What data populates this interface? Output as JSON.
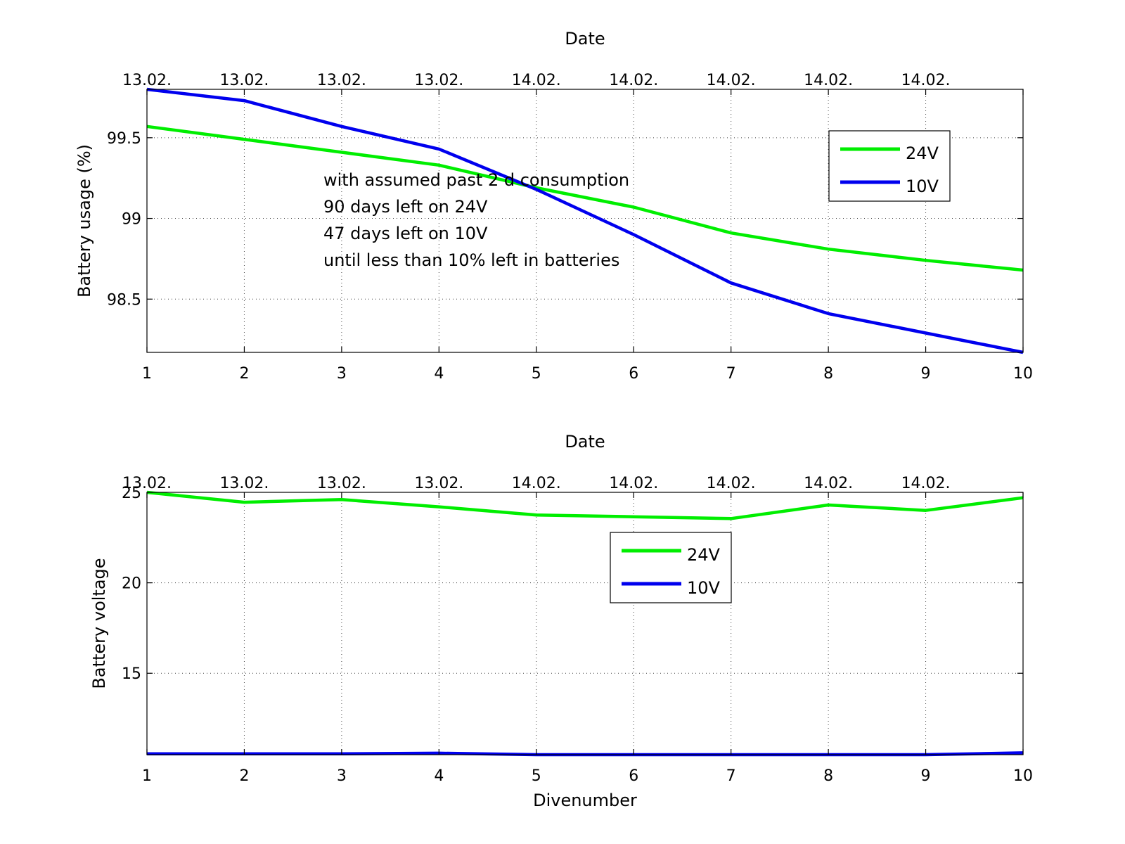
{
  "chart_data": [
    {
      "type": "line",
      "title": "",
      "top_xlabel": "Date",
      "xlabel": "",
      "ylabel": "Battery usage (%)",
      "x": [
        1,
        2,
        3,
        4,
        5,
        6,
        7,
        8,
        9,
        10
      ],
      "xlim": [
        1,
        10
      ],
      "ylim": [
        98.17,
        99.8
      ],
      "xticks": [
        "1",
        "2",
        "3",
        "4",
        "5",
        "6",
        "7",
        "8",
        "9",
        "10"
      ],
      "top_ticks": [
        "13.02.",
        "13.02.",
        "13.02.",
        "13.02.",
        "14.02.",
        "14.02.",
        "14.02.",
        "14.02.",
        "14.02."
      ],
      "yticks": [
        98.5,
        99,
        99.5
      ],
      "ytick_labels": [
        "98.5",
        "99",
        "99.5"
      ],
      "grid": true,
      "legend_position": "top-right",
      "series": [
        {
          "name": "24V",
          "color": "#00ee00",
          "values": [
            99.57,
            99.49,
            99.41,
            99.33,
            99.19,
            99.07,
            98.91,
            98.81,
            98.74,
            98.68
          ]
        },
        {
          "name": "10V",
          "color": "#0000ee",
          "values": [
            99.8,
            99.73,
            99.57,
            99.43,
            99.18,
            98.9,
            98.6,
            98.41,
            98.29,
            98.17
          ]
        }
      ],
      "annotations": [
        "with assumed past 2 d consumption",
        "90 days left on 24V",
        "47 days left on 10V",
        "until less than 10% left in batteries"
      ]
    },
    {
      "type": "line",
      "title": "",
      "top_xlabel": "Date",
      "xlabel": "Divenumber",
      "ylabel": "Battery voltage",
      "x": [
        1,
        2,
        3,
        4,
        5,
        6,
        7,
        8,
        9,
        10
      ],
      "xlim": [
        1,
        10
      ],
      "ylim": [
        10.5,
        25
      ],
      "xticks": [
        "1",
        "2",
        "3",
        "4",
        "5",
        "6",
        "7",
        "8",
        "9",
        "10"
      ],
      "top_ticks": [
        "13.02.",
        "13.02.",
        "13.02.",
        "13.02.",
        "14.02.",
        "14.02.",
        "14.02.",
        "14.02.",
        "14.02."
      ],
      "yticks": [
        15,
        20,
        25
      ],
      "ytick_labels": [
        "15",
        "20",
        "25"
      ],
      "grid": true,
      "legend_position": "top-center",
      "series": [
        {
          "name": "24V",
          "color": "#00ee00",
          "values": [
            25.0,
            24.45,
            24.6,
            24.2,
            23.75,
            23.65,
            23.55,
            24.3,
            24.0,
            24.7
          ]
        },
        {
          "name": "10V",
          "color": "#0000ee",
          "values": [
            10.55,
            10.55,
            10.55,
            10.58,
            10.5,
            10.5,
            10.5,
            10.5,
            10.5,
            10.6
          ]
        }
      ]
    }
  ]
}
